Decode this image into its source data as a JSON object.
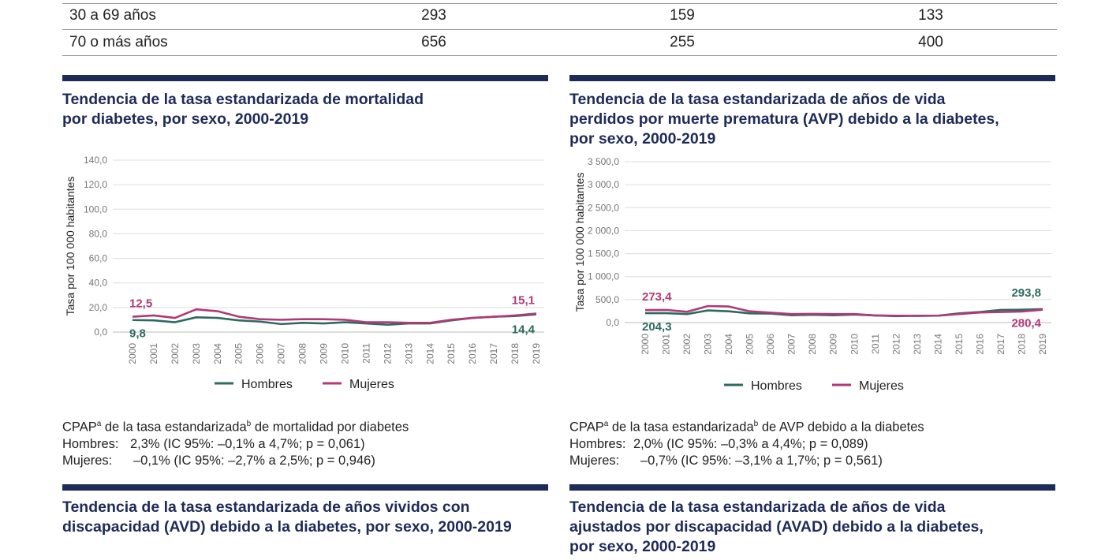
{
  "table": {
    "rows": [
      {
        "label": "30 a 69 años",
        "values": [
          "293",
          "159",
          "133"
        ]
      },
      {
        "label": "70 o más años",
        "values": [
          "656",
          "255",
          "400"
        ]
      }
    ]
  },
  "colors": {
    "hombres": "#2e6b5e",
    "mujeres": "#b03a78",
    "navy": "#1e2b58",
    "grid": "#dddddd",
    "tick": "#777777"
  },
  "panels": [
    {
      "title_lines": [
        "Tendencia de la tasa estandarizada de mortalidad",
        "por diabetes, por sexo, 2000-2019"
      ],
      "stats": {
        "heading": "CPAP",
        "sup_a": "a",
        "heading_mid": " de la tasa estandarizada",
        "sup_b": "b",
        "heading_end": " de mortalidad por diabetes",
        "hombres_label": "Hombres:",
        "hombres_value": "2,3% (IC 95%: –0,1% a 4,7%; p = 0,061)",
        "mujeres_label": "Mujeres:",
        "mujeres_value": "–0,1% (IC 95%: –2,7% a 2,5%; p = 0,946)"
      }
    },
    {
      "title_lines": [
        "Tendencia de la tasa estandarizada de años de vida",
        "perdidos por muerte prematura (AVP) debido a la diabetes,",
        "por sexo, 2000-2019"
      ],
      "stats": {
        "heading": "CPAP",
        "sup_a": "a",
        "heading_mid": " de la tasa estandarizada",
        "sup_b": "b",
        "heading_end": " de AVP debido a la diabetes",
        "hombres_label": "Hombres:",
        "hombres_value": "2,0% (IC 95%: –0,3% a 4,4%; p = 0,089)",
        "mujeres_label": "Mujeres:",
        "mujeres_value": "–0,7% (IC 95%: –3,1% a 1,7%; p = 0,561)"
      }
    },
    {
      "title_lines": [
        "Tendencia de la tasa estandarizada de años vividos con",
        "discapacidad (AVD) debido a la diabetes, por sexo, 2000-2019"
      ]
    },
    {
      "title_lines": [
        "Tendencia de la tasa estandarizada de años de vida",
        "ajustados por discapacidad (AVAD) debido a la diabetes,",
        "por sexo, 2000-2019"
      ]
    }
  ],
  "chart_data": [
    {
      "type": "line",
      "ylabel": "Tasa por 100 000 habitantes",
      "ylim": [
        0,
        140
      ],
      "yticks": [
        "0,0",
        "20,0",
        "40,0",
        "60,0",
        "80,0",
        "100,0",
        "120,0",
        "140,0"
      ],
      "ytick_values": [
        0,
        20,
        40,
        60,
        80,
        100,
        120,
        140
      ],
      "grid": true,
      "legend": "bottom",
      "x": [
        "2000",
        "2001",
        "2002",
        "2003",
        "2004",
        "2005",
        "2006",
        "2007",
        "2008",
        "2009",
        "2010",
        "2011",
        "2012",
        "2013",
        "2014",
        "2015",
        "2016",
        "2017",
        "2018",
        "2019"
      ],
      "series": [
        {
          "name": "Hombres",
          "values": [
            9.8,
            9.5,
            8.0,
            12.0,
            11.5,
            9.5,
            8.5,
            6.5,
            7.5,
            7.0,
            8.0,
            7.0,
            6.0,
            7.0,
            7.0,
            9.5,
            11.5,
            12.5,
            13.0,
            14.4
          ]
        },
        {
          "name": "Mujeres",
          "values": [
            12.5,
            13.5,
            11.5,
            18.5,
            17.0,
            12.5,
            10.5,
            10.0,
            10.5,
            10.5,
            10.0,
            8.0,
            8.0,
            7.5,
            7.5,
            10.0,
            11.5,
            12.5,
            13.5,
            15.1
          ]
        }
      ],
      "annotations": [
        {
          "series": "Mujeres",
          "x": "2000",
          "text": "12,5"
        },
        {
          "series": "Hombres",
          "x": "2000",
          "text": "9,8"
        },
        {
          "series": "Mujeres",
          "x": "2019",
          "text": "15,1"
        },
        {
          "series": "Hombres",
          "x": "2019",
          "text": "14,4"
        }
      ]
    },
    {
      "type": "line",
      "ylabel": "Tasa por 100 000 habitantes",
      "ylim": [
        0,
        3500
      ],
      "yticks": [
        "0,0",
        "500,0",
        "1 000,0",
        "1 500,0",
        "2 000,0",
        "2 500,0",
        "3 000,0",
        "3 500,0"
      ],
      "ytick_values": [
        0,
        500,
        1000,
        1500,
        2000,
        2500,
        3000,
        3500
      ],
      "grid": true,
      "legend": "bottom",
      "x": [
        "2000",
        "2001",
        "2002",
        "2003",
        "2004",
        "2005",
        "2006",
        "2007",
        "2008",
        "2009",
        "2010",
        "2011",
        "2012",
        "2013",
        "2014",
        "2015",
        "2016",
        "2017",
        "2018",
        "2019"
      ],
      "series": [
        {
          "name": "Hombres",
          "values": [
            204.3,
            205,
            185,
            265,
            245,
            200,
            195,
            160,
            170,
            160,
            175,
            155,
            140,
            150,
            150,
            200,
            230,
            275,
            280,
            293.8
          ]
        },
        {
          "name": "Mujeres",
          "values": [
            273.4,
            275,
            235,
            360,
            350,
            245,
            215,
            185,
            190,
            185,
            185,
            155,
            150,
            145,
            150,
            185,
            220,
            230,
            240,
            280.4
          ]
        }
      ],
      "annotations": [
        {
          "series": "Mujeres",
          "x": "2000",
          "text": "273,4"
        },
        {
          "series": "Hombres",
          "x": "2000",
          "text": "204,3"
        },
        {
          "series": "Hombres",
          "x": "2019",
          "text": "293,8"
        },
        {
          "series": "Mujeres",
          "x": "2019",
          "text": "280,4"
        }
      ]
    }
  ]
}
